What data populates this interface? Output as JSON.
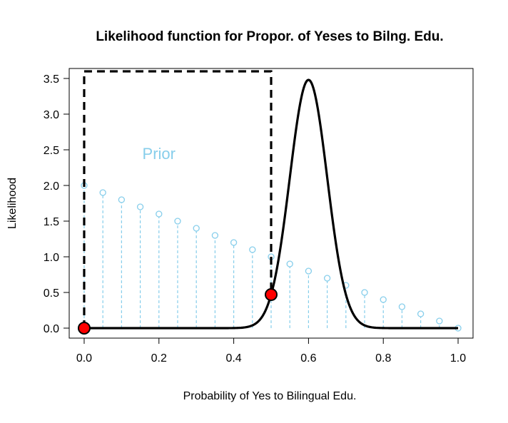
{
  "chart_data": {
    "type": "line",
    "title": "Likelihood function for Propor. of Yeses to Bilng. Edu.",
    "xlabel": "Probability of Yes to Bilingual Edu.",
    "ylabel": "Likelihood",
    "xlim": [
      -0.04,
      1.04
    ],
    "ylim": [
      -0.14,
      3.64
    ],
    "x_ticks": [
      0.0,
      0.2,
      0.4,
      0.6,
      0.8,
      1.0
    ],
    "x_tick_labels": [
      "0.0",
      "0.2",
      "0.4",
      "0.6",
      "0.8",
      "1.0"
    ],
    "y_ticks": [
      0.0,
      0.5,
      1.0,
      1.5,
      2.0,
      2.5,
      3.0,
      3.5
    ],
    "y_tick_labels": [
      "0.0",
      "0.5",
      "1.0",
      "1.5",
      "2.0",
      "2.5",
      "3.0",
      "3.5"
    ],
    "grid": false,
    "annotations": [
      {
        "text": "Prior",
        "x": 0.2,
        "y": 2.45,
        "color": "#87CEEB"
      }
    ],
    "series": [
      {
        "kind": "likelihood-curve",
        "color": "#000000",
        "style": "solid",
        "distribution": {
          "family": "normal",
          "mean": 0.6,
          "sd": 0.05
        },
        "x_range": [
          0.0,
          1.0
        ],
        "peak": 3.48
      },
      {
        "kind": "uniform-prior-box",
        "color": "#000000",
        "style": "dashed",
        "x": [
          0.0,
          0.0,
          0.5,
          0.5
        ],
        "y": [
          0.0,
          3.6,
          3.6,
          0.5
        ]
      },
      {
        "kind": "prior-stems",
        "color": "#87CEEB",
        "style": "dashed-stems-open-circles",
        "x": [
          0.0,
          0.05,
          0.1,
          0.15,
          0.2,
          0.25,
          0.3,
          0.35,
          0.4,
          0.45,
          0.5,
          0.55,
          0.6,
          0.65,
          0.7,
          0.75,
          0.8,
          0.85,
          0.9,
          0.95,
          1.0
        ],
        "y": [
          2.0,
          1.9,
          1.8,
          1.7,
          1.6,
          1.5,
          1.4,
          1.3,
          1.2,
          1.1,
          1.0,
          0.9,
          0.8,
          0.7,
          0.6,
          0.5,
          0.4,
          0.3,
          0.2,
          0.1,
          0.0
        ]
      },
      {
        "kind": "highlight-points",
        "color": "#ff0000",
        "x": [
          0.0,
          0.5
        ],
        "y": [
          0.0,
          0.47
        ]
      }
    ]
  }
}
